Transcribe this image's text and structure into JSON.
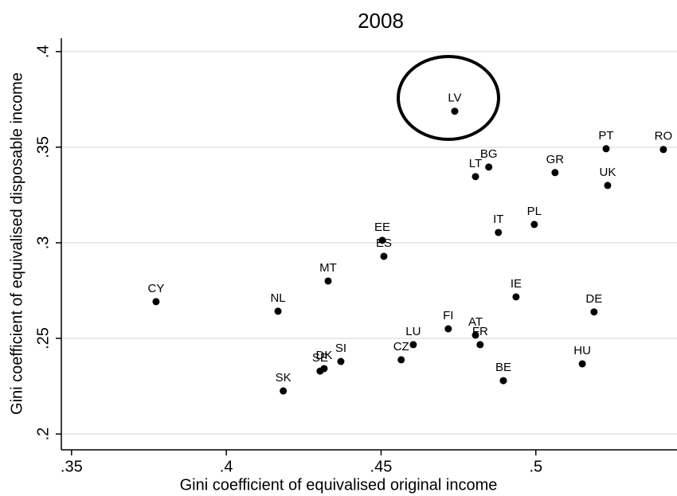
{
  "chart_data": {
    "type": "scatter",
    "title": "2008",
    "xlabel": "Gini coefficient of equivalised original income",
    "ylabel": "Gini coefficient of equivalised disposable income",
    "labels": [
      "LV",
      "PT",
      "RO",
      "BG",
      "LT",
      "GR",
      "UK",
      "IT",
      "PL",
      "EE",
      "ES",
      "MT",
      "CY",
      "NL",
      "IE",
      "DE",
      "FI",
      "AT",
      "FR",
      "LU",
      "CZ",
      "SI",
      "SE",
      "DK",
      "SK",
      "BE",
      "HU"
    ],
    "x": [
      0.4738,
      0.5227,
      0.5412,
      0.4848,
      0.4805,
      0.5062,
      0.5232,
      0.4879,
      0.4995,
      0.4504,
      0.4509,
      0.4329,
      0.3773,
      0.4167,
      0.4936,
      0.5188,
      0.4717,
      0.4805,
      0.482,
      0.4604,
      0.4565,
      0.437,
      0.4303,
      0.4316,
      0.4184,
      0.4895,
      0.515
    ],
    "values": [
      0.3688,
      0.3492,
      0.3488,
      0.3396,
      0.3346,
      0.3367,
      0.33,
      0.3054,
      0.3096,
      0.3013,
      0.2929,
      0.28,
      0.2692,
      0.2642,
      0.2717,
      0.2638,
      0.255,
      0.2517,
      0.2467,
      0.2467,
      0.2388,
      0.2379,
      0.2329,
      0.2342,
      0.2225,
      0.2279,
      0.2367
    ],
    "color": "#000000",
    "xlim": [
      0.3467,
      0.5456
    ],
    "ylim": [
      0.1917,
      0.407
    ],
    "xticks": [
      {
        "value": 0.35,
        "label": ".35"
      },
      {
        "value": 0.4,
        "label": ".4"
      },
      {
        "value": 0.45,
        "label": ".45"
      },
      {
        "value": 0.5,
        "label": ".5"
      }
    ],
    "yticks": [
      {
        "value": 0.2,
        "label": ".2"
      },
      {
        "value": 0.25,
        "label": ".25"
      },
      {
        "value": 0.3,
        "label": ".3"
      },
      {
        "value": 0.35,
        "label": ".35"
      },
      {
        "value": 0.4,
        "label": ".4"
      }
    ],
    "grid": true
  }
}
